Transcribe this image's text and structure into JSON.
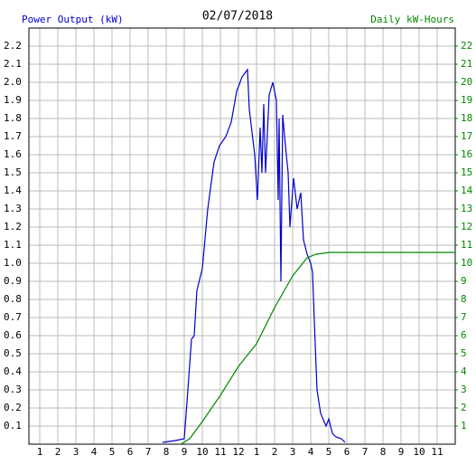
{
  "chart_data": {
    "type": "line",
    "title": "02/07/2018",
    "y_label": "Power Output (kW)",
    "y2_label": "Daily kW-Hours",
    "xlim": [
      0,
      24
    ],
    "xticks": [
      1,
      2,
      3,
      4,
      5,
      6,
      7,
      8,
      9,
      10,
      11,
      12,
      {
        "value": 13,
        "label": "1"
      },
      {
        "value": 14,
        "label": "2"
      },
      {
        "value": 15,
        "label": "3"
      },
      {
        "value": 16,
        "label": "4"
      },
      {
        "value": 17,
        "label": "5"
      },
      {
        "value": 18,
        "label": "6"
      },
      {
        "value": 19,
        "label": "7"
      },
      {
        "value": 20,
        "label": "8"
      },
      {
        "value": 21,
        "label": "9"
      },
      {
        "value": 22,
        "label": "10"
      },
      {
        "value": 23,
        "label": "11"
      }
    ],
    "ylim": [
      0,
      2.3
    ],
    "yticks": [
      0.1,
      0.2,
      0.3,
      0.4,
      0.5,
      0.6,
      0.7,
      0.8,
      0.9,
      {
        "value": 1,
        "label": "1.0"
      },
      1.1,
      1.2,
      1.3,
      1.4,
      1.5,
      1.6,
      1.7,
      1.8,
      1.9,
      {
        "value": 2,
        "label": "2.0"
      },
      2.1,
      2.2
    ],
    "y2lim": [
      0,
      23
    ],
    "y2ticks": [
      1,
      2,
      3,
      4,
      5,
      6,
      7,
      8,
      9,
      10,
      11,
      12,
      13,
      14,
      15,
      16,
      17,
      18,
      19,
      20,
      21,
      22
    ],
    "grid": true,
    "series": [
      {
        "name": "Power Output (kW)",
        "color": "#0000cc",
        "x": [
          7.8,
          8.5,
          9.0,
          9.2,
          9.4,
          9.55,
          9.7,
          10.0,
          10.3,
          10.65,
          10.95,
          11.3,
          11.6,
          11.9,
          12.2,
          12.5,
          12.6,
          12.9,
          13.05,
          13.2,
          13.3,
          13.4,
          13.5,
          13.7,
          13.9,
          14.1,
          14.2,
          14.25,
          14.35,
          14.45,
          14.6,
          14.75,
          14.85,
          15.05,
          15.25,
          15.45,
          15.6,
          15.8,
          16.0,
          16.1,
          16.25,
          16.35,
          16.55,
          16.85,
          17.0,
          17.2,
          17.4,
          17.7,
          17.9
        ],
        "values": [
          0.01,
          0.02,
          0.03,
          0.3,
          0.58,
          0.6,
          0.85,
          0.97,
          1.3,
          1.56,
          1.65,
          1.7,
          1.78,
          1.95,
          2.03,
          2.07,
          1.85,
          1.6,
          1.35,
          1.75,
          1.5,
          1.88,
          1.5,
          1.93,
          2.0,
          1.9,
          1.35,
          1.8,
          0.9,
          1.82,
          1.65,
          1.5,
          1.2,
          1.47,
          1.3,
          1.39,
          1.13,
          1.05,
          1.0,
          0.95,
          0.55,
          0.3,
          0.17,
          0.1,
          0.14,
          0.06,
          0.04,
          0.03,
          0.01
        ]
      },
      {
        "name": "Daily kW-Hours",
        "color": "#008800",
        "axis": "y2",
        "x": [
          8.8,
          9.3,
          10,
          11,
          12,
          13,
          14,
          15,
          15.8,
          16.3,
          17.05,
          24
        ],
        "values": [
          0,
          0.3,
          1.25,
          2.7,
          4.3,
          5.55,
          7.55,
          9.3,
          10.3,
          10.5,
          10.6,
          10.6
        ]
      }
    ]
  }
}
